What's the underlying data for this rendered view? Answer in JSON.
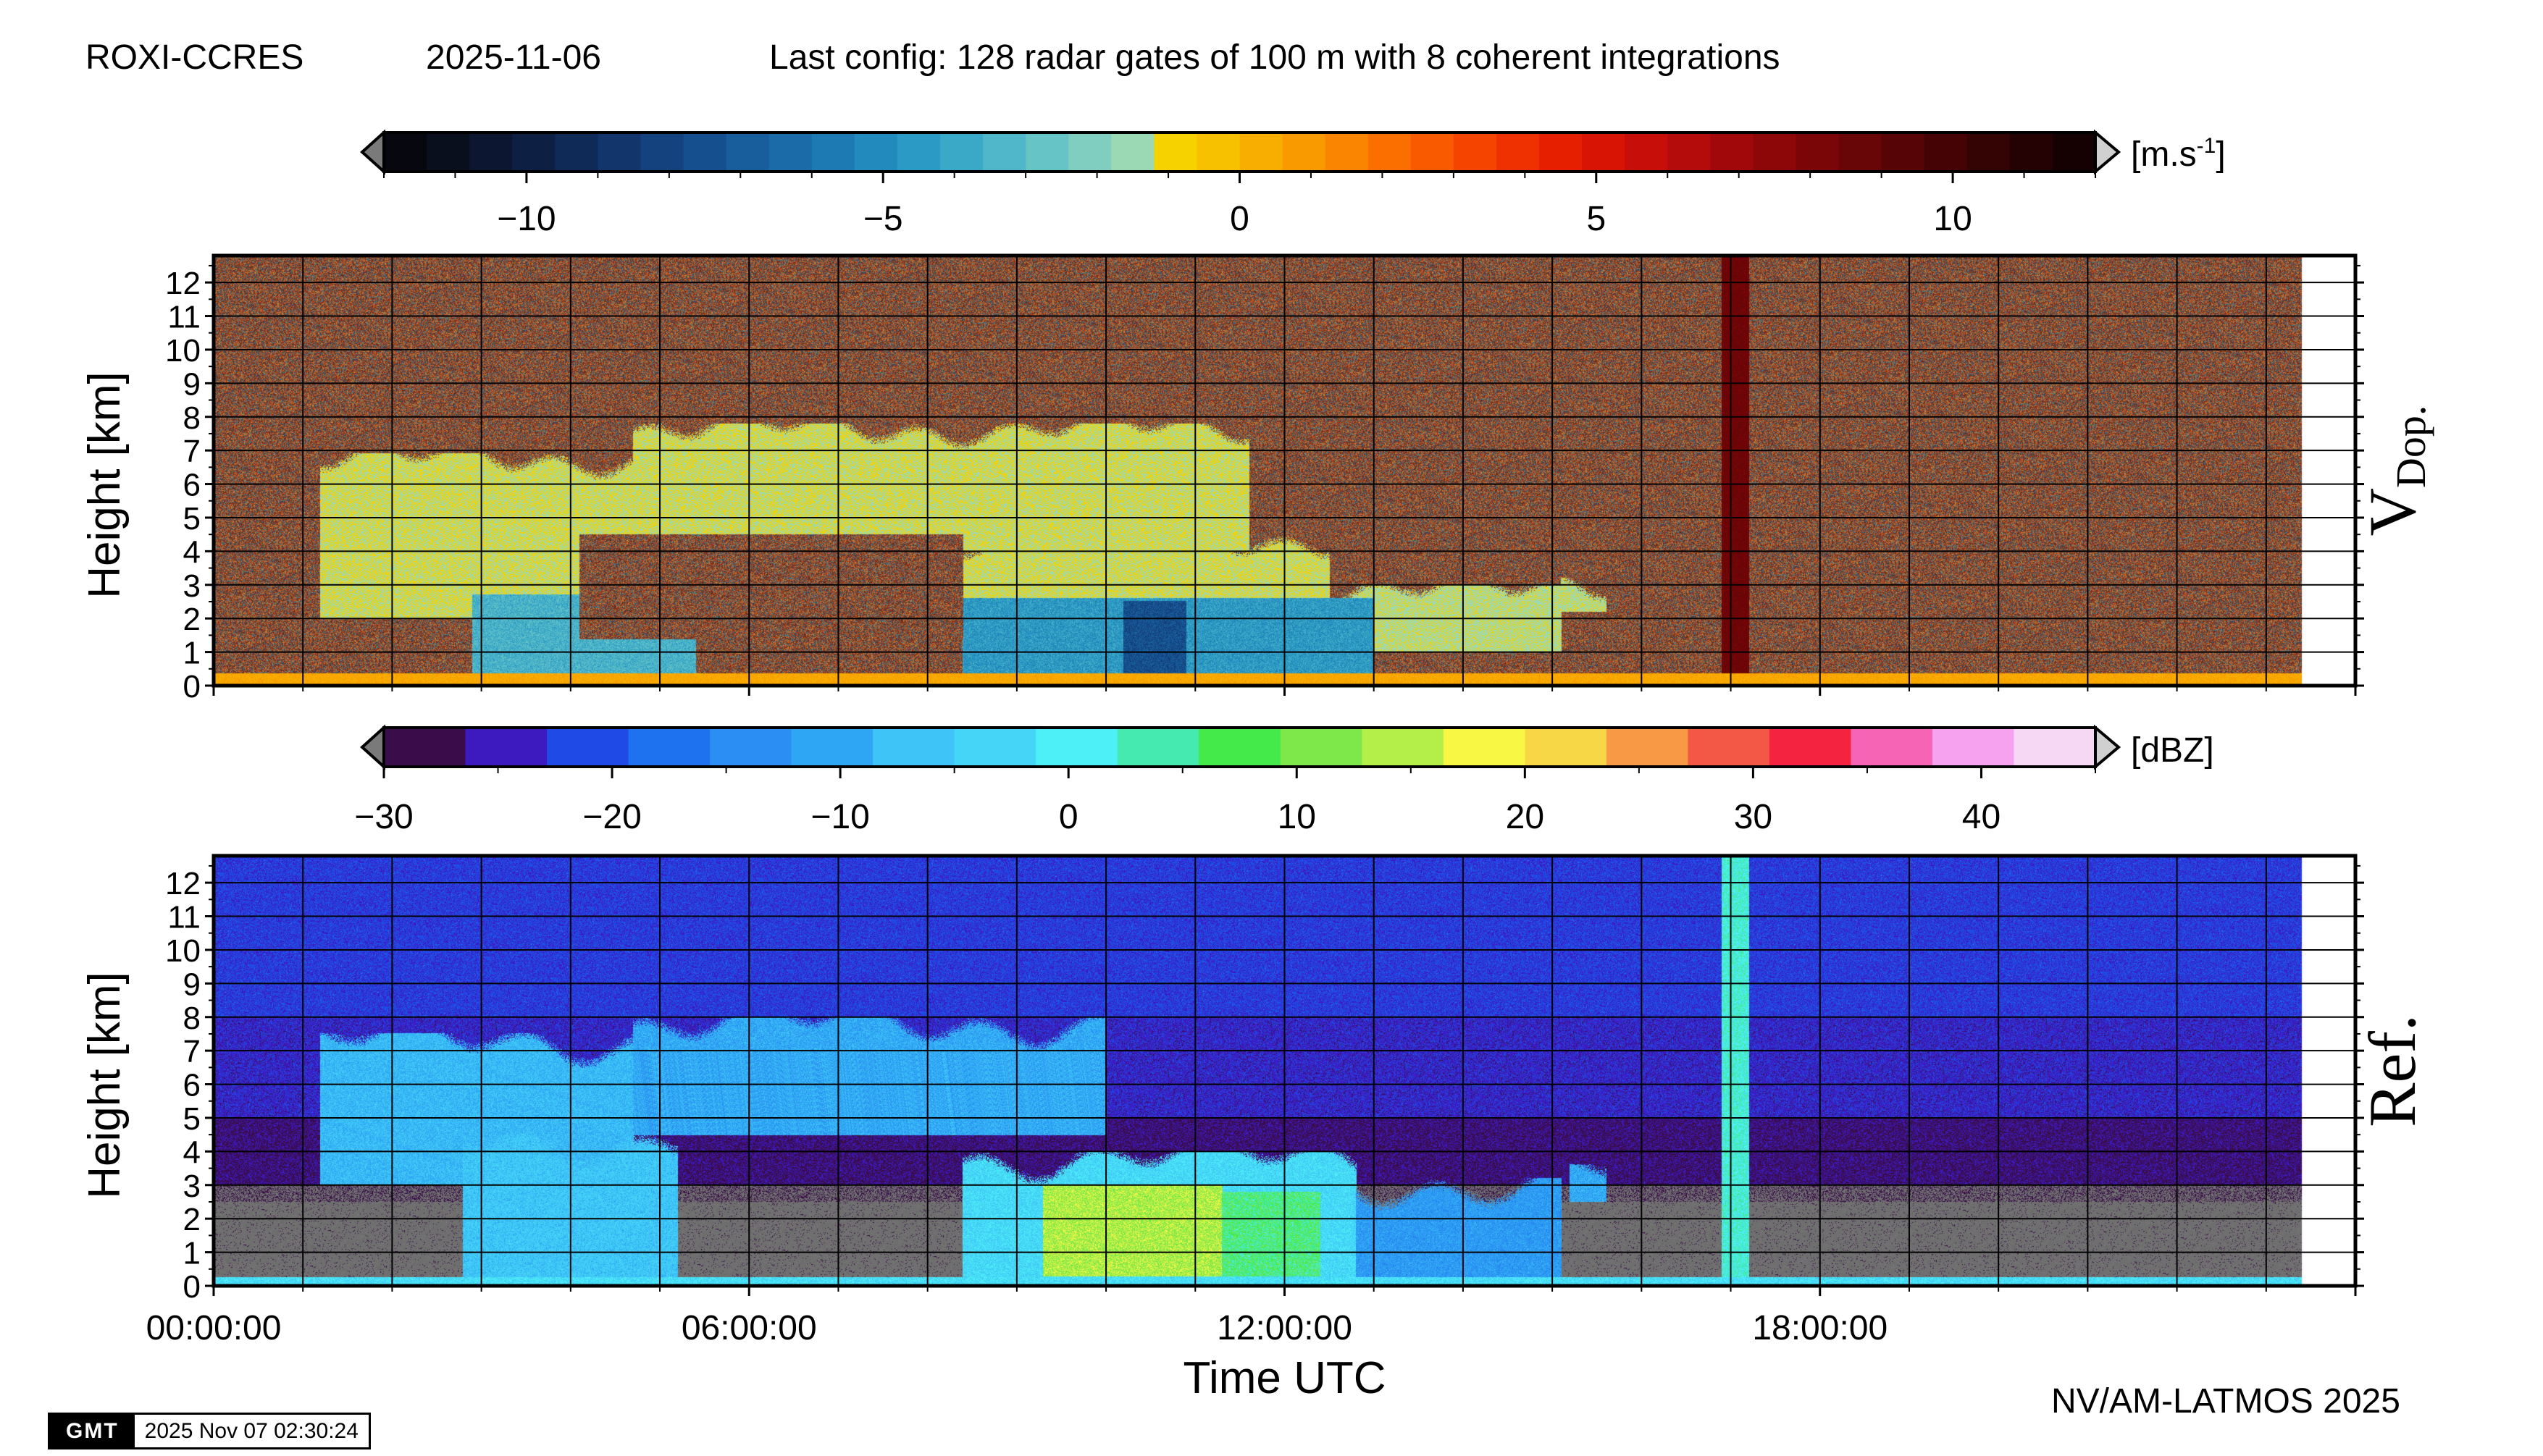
{
  "header": {
    "station": "ROXI-CCRES",
    "date": "2025-11-06",
    "config": "Last config: 128 radar gates of 100 m with 8 coherent integrations"
  },
  "footer": {
    "credit": "NV/AM-LATMOS 2025",
    "gmt_logo": "GMT",
    "gmt_timestamp": "2025 Nov 07 02:30:24"
  },
  "colors": {
    "background": "#ffffff",
    "noise_gray": "#6e6e6e",
    "dopp_red_band": "#a50f0f"
  },
  "chart_data": [
    {
      "type": "heatmap",
      "panel_label": "V",
      "panel_label_sub": "Dop.",
      "ylabel": "Height [km]",
      "xlabel": "",
      "xlim": [
        "00:00:00",
        "24:00:00"
      ],
      "ylim": [
        0,
        12.8
      ],
      "y_ticks": [
        0,
        1,
        2,
        3,
        4,
        5,
        6,
        7,
        8,
        9,
        10,
        11,
        12
      ],
      "x_ticks": [
        "00:00:00",
        "06:00:00",
        "12:00:00",
        "18:00:00"
      ],
      "grid": true,
      "colorbar": {
        "unit": "[m.s-1]",
        "unit_base": "[m.s",
        "unit_exp": "-1",
        "unit_close": "]",
        "range": [
          -12,
          12
        ],
        "ticks": [
          -10,
          -5,
          0,
          5,
          10
        ],
        "tick_labels": [
          "−10",
          "−5",
          "0",
          "5",
          "10"
        ],
        "colors": [
          "#07070f",
          "#0a0f1e",
          "#0c1630",
          "#0e1f44",
          "#102a58",
          "#12356b",
          "#14427e",
          "#164f8e",
          "#185d9c",
          "#1a6ba8",
          "#1d7ab3",
          "#238abd",
          "#2b9ac4",
          "#3aa9c8",
          "#4fb7c9",
          "#66c3c6",
          "#7fcec0",
          "#9bd9b4",
          "#f6d300",
          "#f7c100",
          "#f8ae00",
          "#f99a00",
          "#fa8500",
          "#fb6f00",
          "#f95a00",
          "#f54400",
          "#ef3000",
          "#e61f00",
          "#d81404",
          "#c70e08",
          "#b40b0b",
          "#a1080a",
          "#8d0709",
          "#7a0608",
          "#680507",
          "#560406",
          "#450305",
          "#340304",
          "#240203",
          "#150102"
        ]
      },
      "regions": [
        {
          "field": "noise",
          "t0": 0.0,
          "t1": 23.4,
          "h0": 0.0,
          "h1": 12.8
        },
        {
          "field": "cloud",
          "t0": 1.2,
          "t1": 4.7,
          "h0": 2.0,
          "h1": 6.9,
          "value": -1.2
        },
        {
          "field": "cloud",
          "t0": 4.7,
          "t1": 11.6,
          "h0": 4.0,
          "h1": 7.8,
          "value": -1.2
        },
        {
          "field": "cloud",
          "t0": 8.2,
          "t1": 12.5,
          "h0": 2.5,
          "h1": 4.5,
          "value": -1.2
        },
        {
          "field": "cloud",
          "t0": 12.5,
          "t1": 15.1,
          "h0": 1.0,
          "h1": 3.0,
          "value": -1.3
        },
        {
          "field": "cloud",
          "t0": 15.1,
          "t1": 15.6,
          "h0": 2.2,
          "h1": 3.2,
          "value": -1.3
        },
        {
          "field": "precip",
          "t0": 2.9,
          "t1": 5.4,
          "h0": 0.2,
          "h1": 2.7,
          "value": -3.5
        },
        {
          "field": "precip",
          "t0": 8.4,
          "t1": 13.0,
          "h0": 0.2,
          "h1": 2.6,
          "value": -4.5
        },
        {
          "field": "precip",
          "t0": 10.2,
          "t1": 10.9,
          "h0": 0.2,
          "h1": 2.5,
          "value": -7.5
        },
        {
          "field": "noise",
          "t0": 4.1,
          "t1": 8.4,
          "h0": 1.4,
          "h1": 4.5
        },
        {
          "field": "band",
          "t0": 16.9,
          "t1": 17.2,
          "h0": 0.2,
          "h1": 12.8,
          "value": 8.5
        },
        {
          "field": "surface",
          "t0": 0.0,
          "t1": 23.4,
          "h0": 0.0,
          "h1": 0.35,
          "value": 0.5
        }
      ]
    },
    {
      "type": "heatmap",
      "panel_label": "Ref.",
      "ylabel": "Height [km]",
      "xlabel": "Time UTC",
      "xlim": [
        "00:00:00",
        "24:00:00"
      ],
      "ylim": [
        0,
        12.8
      ],
      "y_ticks": [
        0,
        1,
        2,
        3,
        4,
        5,
        6,
        7,
        8,
        9,
        10,
        11,
        12
      ],
      "x_ticks": [
        "00:00:00",
        "06:00:00",
        "12:00:00",
        "18:00:00"
      ],
      "grid": true,
      "colorbar": {
        "unit": "[dBZ]",
        "range": [
          -30,
          45
        ],
        "ticks": [
          -30,
          -20,
          -10,
          0,
          10,
          20,
          30,
          40
        ],
        "tick_labels": [
          "−30",
          "−20",
          "−10",
          "0",
          "10",
          "20",
          "30",
          "40"
        ],
        "colors": [
          "#3a0d4a",
          "#3d1ac0",
          "#1f4ae6",
          "#1f72ef",
          "#2a8ef2",
          "#2fa6f4",
          "#3ec4f6",
          "#45d6f7",
          "#4ef0f7",
          "#44eab0",
          "#44ea4a",
          "#7ee84a",
          "#b4ee48",
          "#f8f744",
          "#f8d747",
          "#f89a45",
          "#f35745",
          "#f42440",
          "#f665b5",
          "#f6a2ef",
          "#f6d8f4"
        ]
      },
      "regions": [
        {
          "field": "bg",
          "t0": 0.0,
          "t1": 23.4,
          "h0": 0.0,
          "h1": 12.8
        },
        {
          "field": "gray",
          "t0": 0.0,
          "t1": 23.4,
          "h0": 0.2,
          "h1": 3.0
        },
        {
          "field": "cloud",
          "t0": 1.2,
          "t1": 4.7,
          "h0": 3.0,
          "h1": 7.5,
          "value": -8
        },
        {
          "field": "cloud",
          "t0": 4.7,
          "t1": 10.0,
          "h0": 4.5,
          "h1": 8.0,
          "value": -10
        },
        {
          "field": "cloud",
          "t0": 2.8,
          "t1": 5.2,
          "h0": 0.2,
          "h1": 4.5,
          "value": -6
        },
        {
          "field": "cloud",
          "t0": 8.4,
          "t1": 12.8,
          "h0": 0.2,
          "h1": 4.0,
          "value": -3
        },
        {
          "field": "cloud",
          "t0": 12.8,
          "t1": 15.1,
          "h0": 0.2,
          "h1": 3.2,
          "value": -12
        },
        {
          "field": "cloud",
          "t0": 15.2,
          "t1": 15.6,
          "h0": 2.5,
          "h1": 3.6,
          "value": -10
        },
        {
          "field": "rain",
          "t0": 9.3,
          "t1": 11.3,
          "h0": 0.3,
          "h1": 3.0,
          "value": 14
        },
        {
          "field": "rain",
          "t0": 11.3,
          "t1": 12.4,
          "h0": 0.3,
          "h1": 2.8,
          "value": 6
        },
        {
          "field": "band",
          "t0": 16.9,
          "t1": 17.2,
          "h0": 0.2,
          "h1": 12.8,
          "value": 2
        },
        {
          "field": "surface",
          "t0": 0.0,
          "t1": 23.4,
          "h0": 0.0,
          "h1": 0.25,
          "value": -2
        }
      ]
    }
  ]
}
